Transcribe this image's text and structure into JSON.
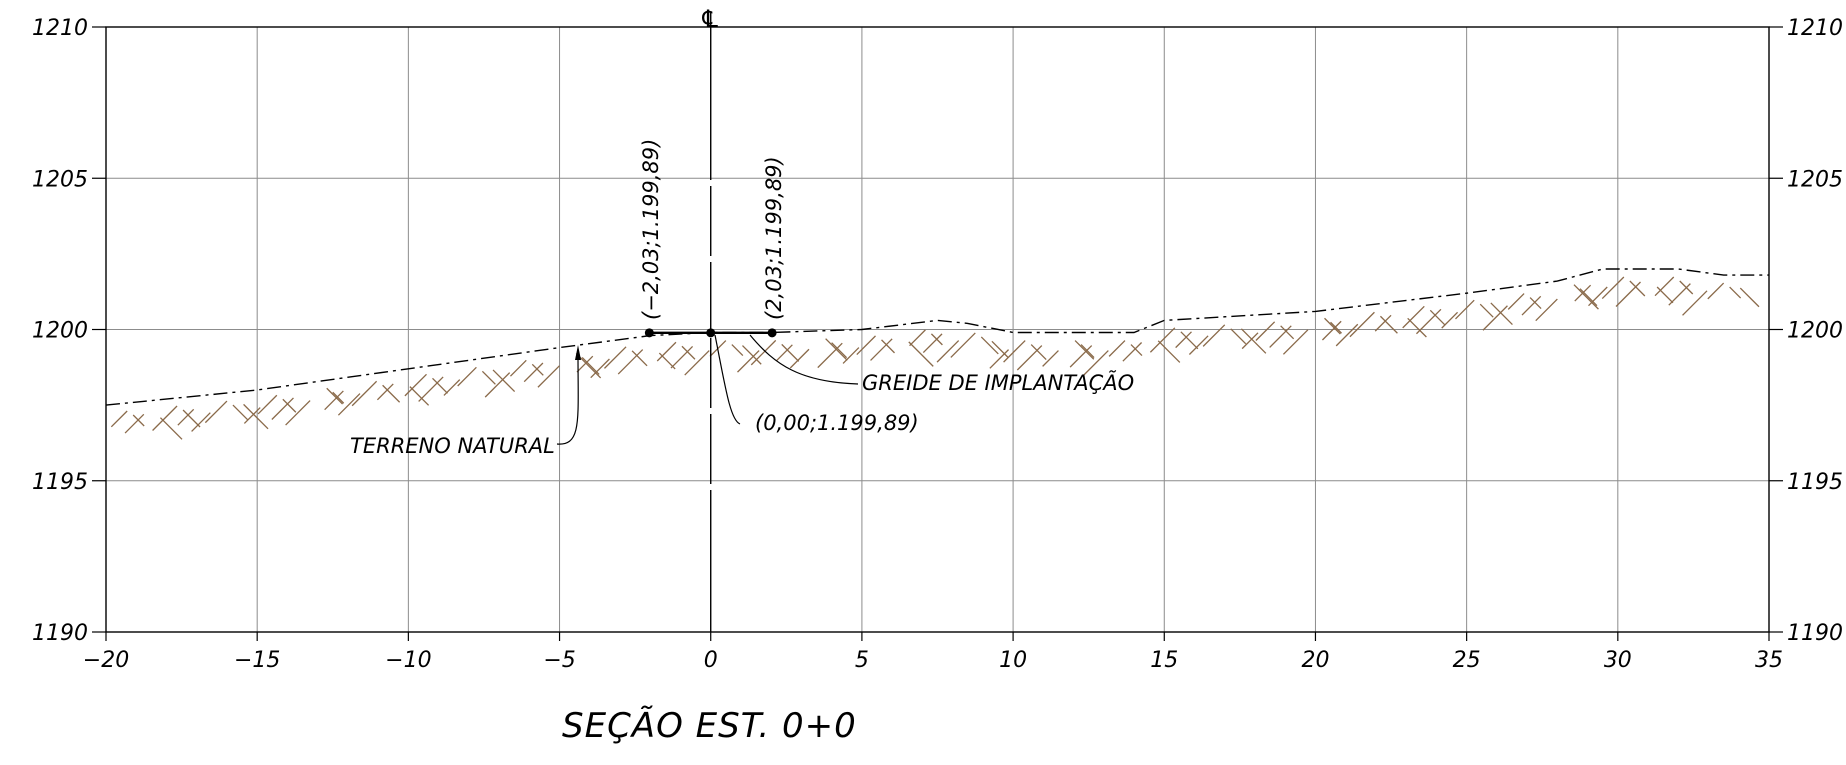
{
  "section_title": "SEÇÃO EST. 0+0",
  "centerline_symbol": "℄",
  "labels": {
    "terreno_natural": "TERRENO NATURAL",
    "greide": "GREIDE DE IMPLANTAÇÃO",
    "pt_left": "(−2,03;1.199,89)",
    "pt_right": "(2,03;1.199,89)",
    "pt_center": "(0,00;1.199,89)"
  },
  "colors": {
    "hatch": "#8a6a4a",
    "grid": "#8c8c8c"
  },
  "chart_data": {
    "type": "line",
    "xlim": [
      -20,
      35
    ],
    "ylim": [
      1190,
      1210
    ],
    "x_ticks": [
      -20,
      -15,
      -10,
      -5,
      0,
      5,
      10,
      15,
      20,
      25,
      30,
      35
    ],
    "y_ticks": [
      1190,
      1195,
      1200,
      1205,
      1210
    ],
    "x_tick_labels": [
      "−20",
      "−15",
      "−10",
      "−5",
      "0",
      "5",
      "10",
      "15",
      "20",
      "25",
      "30",
      "35"
    ],
    "y_tick_labels": [
      "1190",
      "1195",
      "1200",
      "1205",
      "1210"
    ],
    "grid": true,
    "terrain": {
      "x": [
        -20,
        -15,
        -10,
        -5,
        -2,
        0,
        2,
        5,
        7.5,
        8.5,
        10,
        12,
        14,
        15,
        20,
        25,
        28,
        29.5,
        32,
        33.5,
        35
      ],
      "y": [
        1197.5,
        1198.0,
        1198.7,
        1199.4,
        1199.8,
        1199.9,
        1199.9,
        1200.0,
        1200.3,
        1200.2,
        1199.9,
        1199.9,
        1199.9,
        1200.3,
        1200.6,
        1201.2,
        1201.6,
        1202.0,
        1202.0,
        1201.8,
        1201.8
      ]
    },
    "grade": {
      "x": [
        -2.03,
        0,
        2.03
      ],
      "y": [
        1199.89,
        1199.89,
        1199.89
      ]
    }
  }
}
